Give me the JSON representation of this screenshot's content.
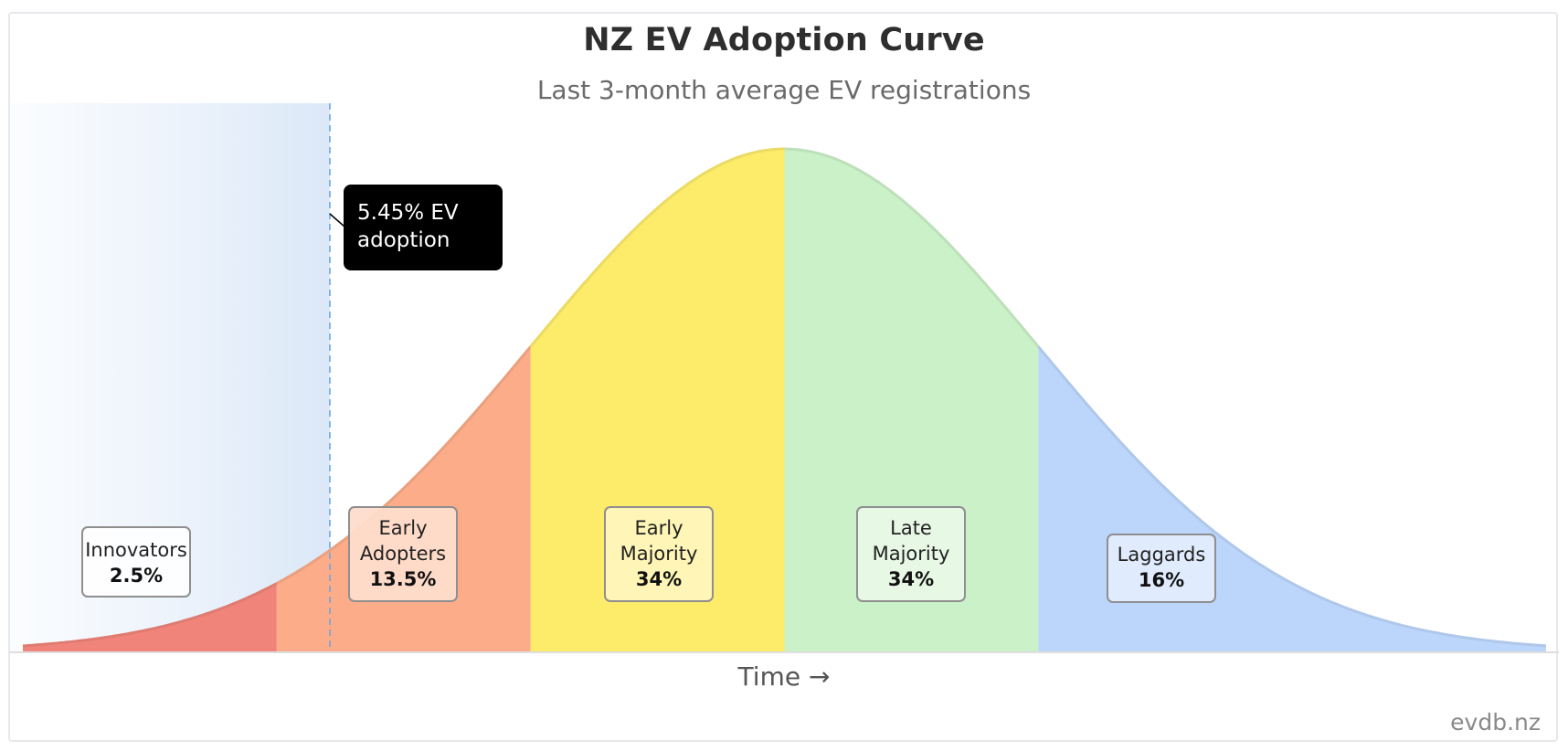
{
  "chart_data": {
    "type": "area",
    "title": "NZ EV Adoption Curve",
    "subtitle": "Last 3-month average EV registrations",
    "xlabel": "Time →",
    "ylabel": "",
    "curve": "normal distribution (diffusion of innovations)",
    "x_range_sd": [
      -3,
      3
    ],
    "segments": [
      {
        "name": "Innovators",
        "percent": "2.5%",
        "share": 2.5,
        "range_sd": [
          -3,
          -2
        ],
        "color": "#f0847a"
      },
      {
        "name": "Early Adopters",
        "percent": "13.5%",
        "share": 13.5,
        "range_sd": [
          -2,
          -1
        ],
        "color": "#fcac88"
      },
      {
        "name": "Early Majority",
        "percent": "34%",
        "share": 34,
        "range_sd": [
          -1,
          0
        ],
        "color": "#fdeb6a"
      },
      {
        "name": "Late Majority",
        "percent": "34%",
        "share": 34,
        "range_sd": [
          0,
          1
        ],
        "color": "#cbf1c8"
      },
      {
        "name": "Laggards",
        "percent": "16%",
        "share": 16,
        "range_sd": [
          1,
          3
        ],
        "color": "#bcd6fb"
      }
    ],
    "current_adoption": {
      "value": 5.45,
      "label": "5.45% EV adoption"
    },
    "grid": false,
    "legend": "none"
  },
  "footer": {
    "brand": "evdb.nz"
  }
}
